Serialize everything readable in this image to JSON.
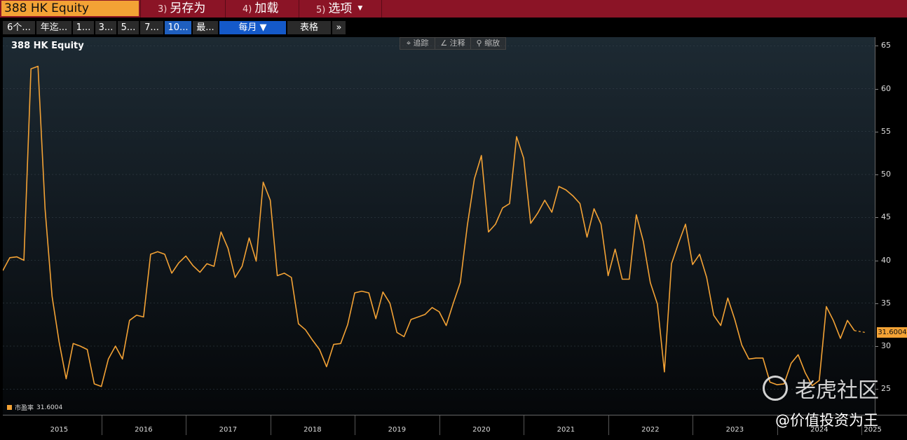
{
  "topbar": {
    "ticker": "388 HK Equity",
    "menu": [
      {
        "num": "3)",
        "label": "另存为"
      },
      {
        "num": "4)",
        "label": "加载"
      },
      {
        "num": "5)",
        "label": "选项",
        "caret": "▼"
      }
    ]
  },
  "rangebar": {
    "buttons": [
      "6个...",
      "年迄...",
      "1...",
      "3...",
      "5...",
      "7...",
      "10...",
      "最..."
    ],
    "active_index": 6,
    "period": "每月 ▼",
    "table": "表格",
    "more": "»"
  },
  "chart": {
    "title": "388 HK Equity",
    "toolbox": [
      "⌖ 追踪",
      "∠ 注释",
      "⚲ 缩放"
    ],
    "legend": {
      "label": "市盈率",
      "value": "31.6004"
    },
    "last_value": "31.6004",
    "line_color": "#f3a235"
  },
  "watermark": {
    "brand": "老虎社区",
    "handle": "@价值投资为王"
  },
  "chart_data": {
    "type": "line",
    "title": "388 HK Equity",
    "series_name": "市盈率",
    "ylim": [
      22,
      66
    ],
    "yticks": [
      65,
      60,
      55,
      50,
      45,
      40,
      35,
      30,
      25
    ],
    "years": [
      "2015",
      "2016",
      "2017",
      "2018",
      "2019",
      "2020",
      "2021",
      "2022",
      "2023",
      "2024",
      "2025"
    ],
    "x_start": "2014-11",
    "x_end": "2025-01",
    "values": [
      38.8,
      40.3,
      40.4,
      40.0,
      62.3,
      62.6,
      46.0,
      35.8,
      30.5,
      26.2,
      30.3,
      30.0,
      29.6,
      25.6,
      25.3,
      28.5,
      30.0,
      28.5,
      33.0,
      33.6,
      33.4,
      40.7,
      41.0,
      40.7,
      38.5,
      39.7,
      40.5,
      39.4,
      38.6,
      39.6,
      39.3,
      43.3,
      41.4,
      38.0,
      39.3,
      42.6,
      39.9,
      49.1,
      47.0,
      38.2,
      38.5,
      38.0,
      32.6,
      31.9,
      30.7,
      29.6,
      27.6,
      30.2,
      30.3,
      32.5,
      36.2,
      36.4,
      36.2,
      33.2,
      36.3,
      35.0,
      31.6,
      31.1,
      33.1,
      33.4,
      33.7,
      34.5,
      34.0,
      32.4,
      35.0,
      37.4,
      44.1,
      49.5,
      52.2,
      43.3,
      44.2,
      46.1,
      46.6,
      54.4,
      51.9,
      44.3,
      45.5,
      47.0,
      45.6,
      48.6,
      48.2,
      47.5,
      46.6,
      42.7,
      46.0,
      44.2,
      38.2,
      41.3,
      37.8,
      37.8,
      45.3,
      42.2,
      37.4,
      34.9,
      27.0,
      39.6,
      42.0,
      44.2,
      39.5,
      40.7,
      38.0,
      33.6,
      32.4,
      35.6,
      33.1,
      30.1,
      28.5,
      28.6,
      28.6,
      25.8,
      25.5,
      25.6,
      28.0,
      29.0,
      26.9,
      25.4,
      26.0,
      34.6,
      33.0,
      30.9,
      33.0,
      31.8
    ],
    "dashed_tail": [
      31.8,
      31.6
    ]
  }
}
